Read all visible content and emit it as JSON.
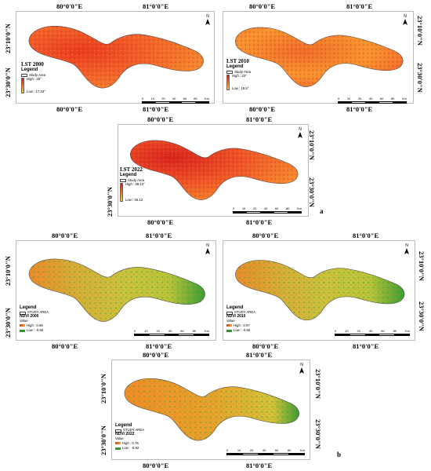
{
  "coords": {
    "lon_west": "80°0'0\"E",
    "lon_east": "81°0'0\"E",
    "lat_north": "23°10'0\"N",
    "lat_south": "23°30'0\"N"
  },
  "north_arrow": {
    "label": "N",
    "icon": "north-arrow-icon"
  },
  "scale": {
    "ticks": [
      "0",
      "10",
      "20",
      "40",
      "60",
      "80"
    ],
    "unit": "Km"
  },
  "legend_common": {
    "title": "Legend",
    "study_area_lst": "Study Area",
    "study_area_ndvi": "STUDY AREA",
    "value_label": "Value"
  },
  "lst_panels": [
    {
      "title": "LST 2000",
      "high": "High : 25°",
      "low": "Low : 17.33°"
    },
    {
      "title": "LST 2010",
      "high": "High : 33°",
      "low": "Low : 18.5°"
    },
    {
      "title": "LST 2022",
      "high": "High : 38.13°",
      "low": "Low : 26.12"
    }
  ],
  "ndvi_panels": [
    {
      "title": "NDVI 2000",
      "high": "High : 0.66",
      "low": "Low : -0.66"
    },
    {
      "title": "NDVI 2010",
      "high": "High : 0.97",
      "low": "Low : -0.66"
    },
    {
      "title": "NDVI 2022",
      "high": "High : 0.76",
      "low": "Low : -0.92"
    }
  ],
  "panel_labels": {
    "a": "a",
    "b": "b"
  },
  "colors": {
    "lst_high": "#d7191c",
    "lst_mid": "#f46d2a",
    "lst_low": "#fdb53a",
    "ndvi_low": "#f28a1f",
    "ndvi_mid": "#c5cf3d",
    "ndvi_high": "#2e9a2e"
  }
}
